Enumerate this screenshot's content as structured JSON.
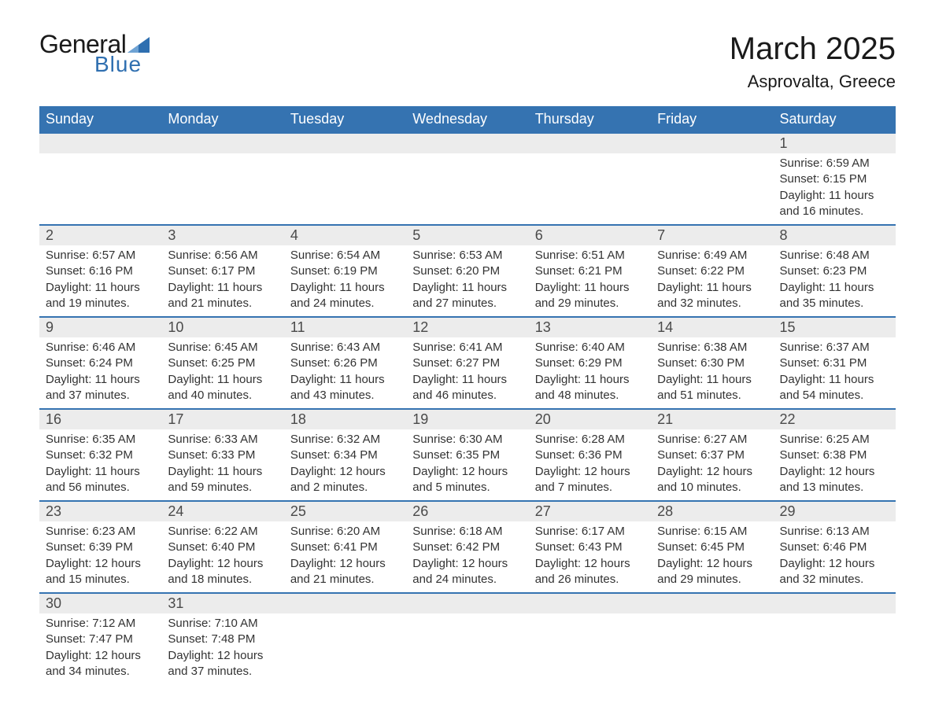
{
  "logo": {
    "text1": "General",
    "text2": "Blue",
    "triangle_color": "#2f6fb0"
  },
  "title": "March 2025",
  "location": "Asprovalta, Greece",
  "colors": {
    "header_bg": "#3573b1",
    "header_fg": "#ffffff",
    "daynum_bg": "#ececec",
    "row_border": "#3573b1",
    "text": "#333333"
  },
  "weekdays": [
    "Sunday",
    "Monday",
    "Tuesday",
    "Wednesday",
    "Thursday",
    "Friday",
    "Saturday"
  ],
  "weeks": [
    [
      null,
      null,
      null,
      null,
      null,
      null,
      {
        "n": "1",
        "sr": "6:59 AM",
        "ss": "6:15 PM",
        "dl": "11 hours and 16 minutes."
      }
    ],
    [
      {
        "n": "2",
        "sr": "6:57 AM",
        "ss": "6:16 PM",
        "dl": "11 hours and 19 minutes."
      },
      {
        "n": "3",
        "sr": "6:56 AM",
        "ss": "6:17 PM",
        "dl": "11 hours and 21 minutes."
      },
      {
        "n": "4",
        "sr": "6:54 AM",
        "ss": "6:19 PM",
        "dl": "11 hours and 24 minutes."
      },
      {
        "n": "5",
        "sr": "6:53 AM",
        "ss": "6:20 PM",
        "dl": "11 hours and 27 minutes."
      },
      {
        "n": "6",
        "sr": "6:51 AM",
        "ss": "6:21 PM",
        "dl": "11 hours and 29 minutes."
      },
      {
        "n": "7",
        "sr": "6:49 AM",
        "ss": "6:22 PM",
        "dl": "11 hours and 32 minutes."
      },
      {
        "n": "8",
        "sr": "6:48 AM",
        "ss": "6:23 PM",
        "dl": "11 hours and 35 minutes."
      }
    ],
    [
      {
        "n": "9",
        "sr": "6:46 AM",
        "ss": "6:24 PM",
        "dl": "11 hours and 37 minutes."
      },
      {
        "n": "10",
        "sr": "6:45 AM",
        "ss": "6:25 PM",
        "dl": "11 hours and 40 minutes."
      },
      {
        "n": "11",
        "sr": "6:43 AM",
        "ss": "6:26 PM",
        "dl": "11 hours and 43 minutes."
      },
      {
        "n": "12",
        "sr": "6:41 AM",
        "ss": "6:27 PM",
        "dl": "11 hours and 46 minutes."
      },
      {
        "n": "13",
        "sr": "6:40 AM",
        "ss": "6:29 PM",
        "dl": "11 hours and 48 minutes."
      },
      {
        "n": "14",
        "sr": "6:38 AM",
        "ss": "6:30 PM",
        "dl": "11 hours and 51 minutes."
      },
      {
        "n": "15",
        "sr": "6:37 AM",
        "ss": "6:31 PM",
        "dl": "11 hours and 54 minutes."
      }
    ],
    [
      {
        "n": "16",
        "sr": "6:35 AM",
        "ss": "6:32 PM",
        "dl": "11 hours and 56 minutes."
      },
      {
        "n": "17",
        "sr": "6:33 AM",
        "ss": "6:33 PM",
        "dl": "11 hours and 59 minutes."
      },
      {
        "n": "18",
        "sr": "6:32 AM",
        "ss": "6:34 PM",
        "dl": "12 hours and 2 minutes."
      },
      {
        "n": "19",
        "sr": "6:30 AM",
        "ss": "6:35 PM",
        "dl": "12 hours and 5 minutes."
      },
      {
        "n": "20",
        "sr": "6:28 AM",
        "ss": "6:36 PM",
        "dl": "12 hours and 7 minutes."
      },
      {
        "n": "21",
        "sr": "6:27 AM",
        "ss": "6:37 PM",
        "dl": "12 hours and 10 minutes."
      },
      {
        "n": "22",
        "sr": "6:25 AM",
        "ss": "6:38 PM",
        "dl": "12 hours and 13 minutes."
      }
    ],
    [
      {
        "n": "23",
        "sr": "6:23 AM",
        "ss": "6:39 PM",
        "dl": "12 hours and 15 minutes."
      },
      {
        "n": "24",
        "sr": "6:22 AM",
        "ss": "6:40 PM",
        "dl": "12 hours and 18 minutes."
      },
      {
        "n": "25",
        "sr": "6:20 AM",
        "ss": "6:41 PM",
        "dl": "12 hours and 21 minutes."
      },
      {
        "n": "26",
        "sr": "6:18 AM",
        "ss": "6:42 PM",
        "dl": "12 hours and 24 minutes."
      },
      {
        "n": "27",
        "sr": "6:17 AM",
        "ss": "6:43 PM",
        "dl": "12 hours and 26 minutes."
      },
      {
        "n": "28",
        "sr": "6:15 AM",
        "ss": "6:45 PM",
        "dl": "12 hours and 29 minutes."
      },
      {
        "n": "29",
        "sr": "6:13 AM",
        "ss": "6:46 PM",
        "dl": "12 hours and 32 minutes."
      }
    ],
    [
      {
        "n": "30",
        "sr": "7:12 AM",
        "ss": "7:47 PM",
        "dl": "12 hours and 34 minutes."
      },
      {
        "n": "31",
        "sr": "7:10 AM",
        "ss": "7:48 PM",
        "dl": "12 hours and 37 minutes."
      },
      null,
      null,
      null,
      null,
      null
    ]
  ],
  "labels": {
    "sunrise": "Sunrise:",
    "sunset": "Sunset:",
    "daylight": "Daylight:"
  }
}
